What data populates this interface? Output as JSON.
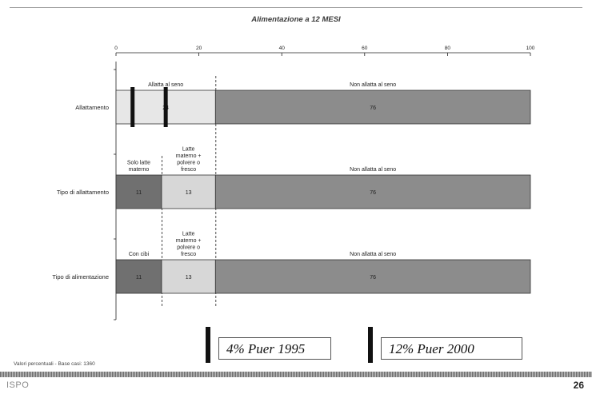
{
  "chart_data": {
    "type": "bar",
    "orientation": "horizontal",
    "stacked": true,
    "title": "Alimentazione a 12 MESI",
    "xlim": [
      0,
      100
    ],
    "xticks": [
      0,
      20,
      40,
      60,
      80,
      100
    ],
    "categories": [
      "Allattamento",
      "Tipo di allattamento",
      "Tipo di alimentazione"
    ],
    "segments": [
      [
        {
          "label": "Allatta al seno",
          "value": 24
        },
        {
          "label": "Non allatta al seno",
          "value": 76
        }
      ],
      [
        {
          "label": "Solo latte materno",
          "value": 11
        },
        {
          "label": "Latte materno + polvere o fresco",
          "value": 13
        },
        {
          "label": "Non allatta al seno",
          "value": 76
        }
      ],
      [
        {
          "label": "Con cibi",
          "value": 11
        },
        {
          "label": "Latte materno + polvere o fresco",
          "value": 13
        },
        {
          "label": "Non allatta al seno",
          "value": 76
        }
      ]
    ],
    "colors": {
      "light": "#e7e7e7",
      "mid": "#d7d7d7",
      "dark": "#8c8c8c",
      "darkest": "#707070"
    },
    "markers": [
      {
        "category": "Allattamento",
        "value": 4
      },
      {
        "category": "Allattamento",
        "value": 12
      }
    ],
    "divider_values": [
      11,
      24
    ]
  },
  "notes": [
    {
      "text": "4% Puer 1995"
    },
    {
      "text": "12% Puer 2000"
    }
  ],
  "base_note": "Valori percentuali - Base casi: 1360",
  "footer": {
    "brand": "ISPO",
    "page": "26"
  }
}
